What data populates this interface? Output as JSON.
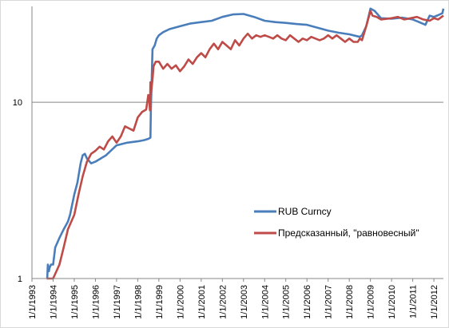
{
  "chart_data": {
    "type": "line",
    "title": "",
    "xlabel": "",
    "ylabel": "",
    "yscale": "log",
    "ylim": [
      1,
      35
    ],
    "xlim": [
      1993.0,
      2012.45
    ],
    "y_ticks": [
      1,
      10
    ],
    "y_tick_labels": [
      "1",
      "10"
    ],
    "x_tick_labels": [
      "1/1/1993",
      "1/1/1994",
      "1/1/1995",
      "1/1/1996",
      "1/1/1997",
      "1/1/1998",
      "1/1/1999",
      "1/1/2000",
      "1/1/2001",
      "1/1/2002",
      "1/1/2003",
      "1/1/2004",
      "1/1/2005",
      "1/1/2006",
      "1/1/2007",
      "1/1/2008",
      "1/1/2009",
      "1/1/2010",
      "1/1/2011",
      "1/1/2012"
    ],
    "x_tick_values": [
      1993,
      1994,
      1995,
      1996,
      1997,
      1998,
      1999,
      2000,
      2001,
      2002,
      2003,
      2004,
      2005,
      2006,
      2007,
      2008,
      2009,
      2010,
      2011,
      2012
    ],
    "gridlines": "horizontal",
    "legend_position": "bottom-right",
    "series": [
      {
        "name": "RUB Curncy",
        "color": "#4a7ebb",
        "x": [
          1993.7,
          1993.72,
          1993.75,
          1993.8,
          1993.83,
          1993.9,
          1994.0,
          1994.1,
          1994.3,
          1994.5,
          1994.7,
          1994.8,
          1995.0,
          1995.15,
          1995.3,
          1995.4,
          1995.5,
          1995.6,
          1995.8,
          1996.0,
          1996.5,
          1997.0,
          1997.5,
          1998.0,
          1998.3,
          1998.5,
          1998.6,
          1998.62,
          1998.65,
          1998.7,
          1998.8,
          1998.9,
          1999.0,
          1999.2,
          1999.5,
          2000.0,
          2000.5,
          2001.0,
          2001.5,
          2002.0,
          2002.5,
          2003.0,
          2003.5,
          2004.0,
          2004.5,
          2005.0,
          2005.5,
          2006.0,
          2006.5,
          2007.0,
          2007.5,
          2008.0,
          2008.5,
          2008.6,
          2008.8,
          2009.0,
          2009.2,
          2009.5,
          2010.0,
          2010.5,
          2011.0,
          2011.3,
          2011.6,
          2011.8,
          2012.0,
          2012.2,
          2012.4,
          2012.45
        ],
        "values": [
          0.95,
          1.0,
          1.2,
          1.1,
          1.15,
          1.2,
          1.2,
          1.5,
          1.7,
          1.9,
          2.1,
          2.3,
          3.0,
          3.5,
          4.5,
          5.0,
          5.1,
          4.8,
          4.5,
          4.6,
          5.0,
          5.7,
          5.9,
          6.0,
          6.1,
          6.2,
          6.3,
          9.0,
          12.0,
          20.0,
          21.0,
          23.0,
          24.0,
          25.0,
          26.0,
          27.0,
          28.0,
          28.5,
          29.0,
          30.5,
          31.5,
          31.7,
          30.5,
          29.0,
          28.5,
          28.2,
          27.8,
          27.5,
          26.5,
          25.5,
          24.8,
          24.3,
          23.5,
          24.0,
          27.0,
          34.0,
          33.0,
          30.0,
          29.8,
          30.2,
          29.5,
          28.5,
          27.5,
          31.0,
          30.5,
          31.2,
          32.0,
          34.0
        ]
      },
      {
        "name": "Предсказанный, \"равновесный\"",
        "color": "#be4b48",
        "x": [
          1993.7,
          1994.0,
          1994.3,
          1994.5,
          1994.7,
          1995.0,
          1995.2,
          1995.4,
          1995.6,
          1995.8,
          1996.0,
          1996.2,
          1996.4,
          1996.6,
          1996.8,
          1997.0,
          1997.2,
          1997.4,
          1997.6,
          1997.8,
          1998.0,
          1998.2,
          1998.4,
          1998.5,
          1998.55,
          1998.58,
          1998.6,
          1998.62,
          1998.7,
          1998.75,
          1998.85,
          1999.0,
          1999.2,
          1999.4,
          1999.6,
          1999.8,
          2000.0,
          2000.2,
          2000.4,
          2000.6,
          2000.8,
          2001.0,
          2001.2,
          2001.4,
          2001.6,
          2001.8,
          2002.0,
          2002.2,
          2002.4,
          2002.6,
          2002.8,
          2003.0,
          2003.2,
          2003.4,
          2003.6,
          2003.8,
          2004.0,
          2004.2,
          2004.4,
          2004.6,
          2004.8,
          2005.0,
          2005.2,
          2005.4,
          2005.6,
          2005.8,
          2006.0,
          2006.2,
          2006.4,
          2006.6,
          2006.8,
          2007.0,
          2007.2,
          2007.4,
          2007.6,
          2007.8,
          2008.0,
          2008.2,
          2008.4,
          2008.5,
          2008.6,
          2008.8,
          2009.0,
          2009.1,
          2009.3,
          2009.5,
          2009.8,
          2010.0,
          2010.3,
          2010.6,
          2010.9,
          2011.2,
          2011.5,
          2011.8,
          2012.0,
          2012.2,
          2012.45
        ],
        "values": [
          0.95,
          1.0,
          1.2,
          1.5,
          1.9,
          2.3,
          3.0,
          3.8,
          4.6,
          5.1,
          5.3,
          5.6,
          5.4,
          6.0,
          6.4,
          5.9,
          6.4,
          7.3,
          7.1,
          6.9,
          8.2,
          8.8,
          9.1,
          11.0,
          10.0,
          9.0,
          13.0,
          11.0,
          13.5,
          16.0,
          17.0,
          17.0,
          15.5,
          16.5,
          15.5,
          16.2,
          15.0,
          16.0,
          17.5,
          16.5,
          18.0,
          19.0,
          18.0,
          20.0,
          21.5,
          20.0,
          22.0,
          21.0,
          20.0,
          22.5,
          21.0,
          23.0,
          24.5,
          23.0,
          24.0,
          23.5,
          24.0,
          23.5,
          23.0,
          24.0,
          23.0,
          22.5,
          24.0,
          23.0,
          22.0,
          23.0,
          22.5,
          23.5,
          23.0,
          22.5,
          23.0,
          24.0,
          23.0,
          24.0,
          23.0,
          22.0,
          23.0,
          22.0,
          22.0,
          23.0,
          22.5,
          27.0,
          33.0,
          31.0,
          30.5,
          29.5,
          29.8,
          30.0,
          30.5,
          29.5,
          30.0,
          30.5,
          29.5,
          29.0,
          30.0,
          29.5,
          31.0
        ]
      }
    ]
  }
}
